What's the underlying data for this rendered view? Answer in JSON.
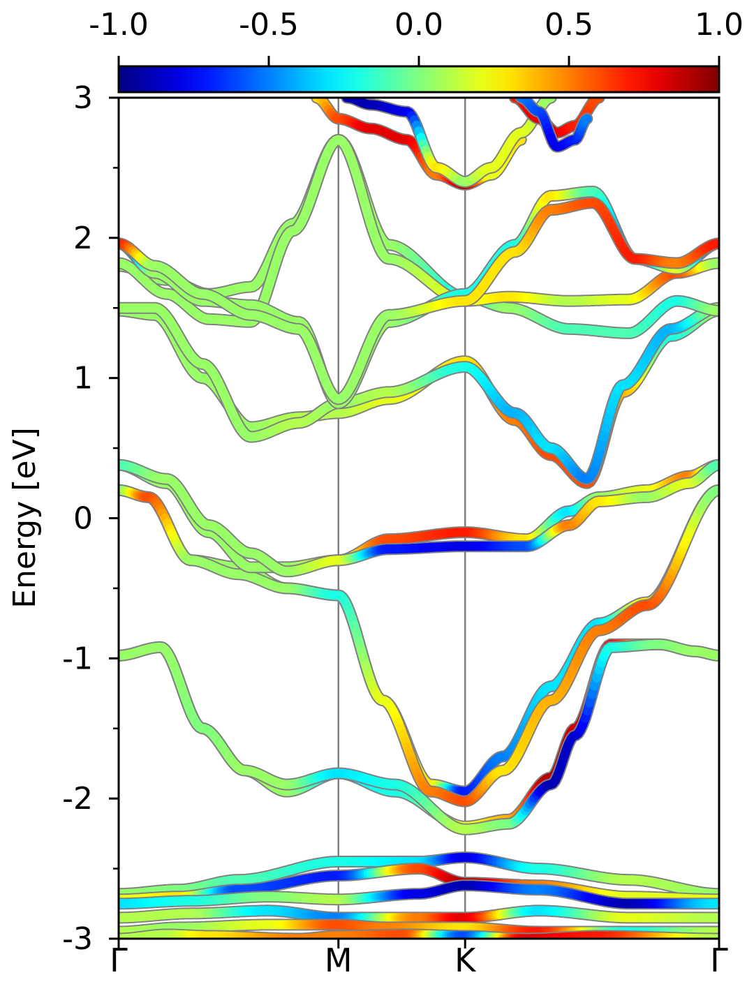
{
  "chart_data": {
    "type": "line",
    "ylabel": "Energy [eV]",
    "xlabel": "",
    "ylim": [
      -3,
      3
    ],
    "xlim": [
      0,
      1
    ],
    "yticks": [
      "-3",
      "-2",
      "-1",
      "0",
      "1",
      "2",
      "3"
    ],
    "yticks_values": [
      -3,
      -2,
      -1,
      0,
      1,
      2,
      3
    ],
    "yminor_step": 0.5,
    "kpath": [
      {
        "label": "Γ",
        "x": 0.0
      },
      {
        "label": "M",
        "x": 0.366
      },
      {
        "label": "K",
        "x": 0.577
      },
      {
        "label": "Γ",
        "x": 1.0
      }
    ],
    "colorbar": {
      "range": [
        -1.0,
        1.0
      ],
      "colormap": "jet",
      "ticks": [
        "-1.0",
        "-0.5",
        "0.0",
        "0.5",
        "1.0"
      ],
      "tick_values": [
        -1.0,
        -0.5,
        0.0,
        0.5,
        1.0
      ]
    },
    "colors": {
      "axis": "#000000",
      "kline": "#808080",
      "band_outline": "#808080"
    },
    "series": [
      {
        "x": [
          0,
          0.07,
          0.14,
          0.21,
          0.28,
          0.366,
          0.46,
          0.577,
          0.65,
          0.72,
          0.76,
          0.82,
          0.9,
          0.96,
          1.0
        ],
        "y": [
          -0.98,
          -0.92,
          -1.5,
          -1.8,
          -1.95,
          -1.82,
          -1.95,
          -2.2,
          -2.15,
          -1.85,
          -1.5,
          -0.9,
          -0.9,
          -0.95,
          -0.98
        ],
        "c": [
          0.05,
          0.05,
          0.0,
          0.05,
          0.05,
          -0.3,
          -0.2,
          0.2,
          0.4,
          0.9,
          0.85,
          0.75,
          0.0,
          0.05,
          0.05
        ]
      },
      {
        "x": [
          0,
          0.07,
          0.14,
          0.21,
          0.28,
          0.366,
          0.46,
          0.577,
          0.65,
          0.72,
          0.76,
          0.82,
          0.9,
          0.96,
          1.0
        ],
        "y": [
          -0.98,
          -0.92,
          -1.5,
          -1.8,
          -1.9,
          -1.82,
          -1.9,
          -2.22,
          -2.18,
          -1.9,
          -1.55,
          -0.92,
          -0.9,
          -0.95,
          -0.98
        ],
        "c": [
          0.05,
          0.05,
          0.0,
          0.05,
          0.05,
          -0.3,
          -0.2,
          0.1,
          0.0,
          -0.9,
          -0.85,
          -0.2,
          0.0,
          0.05,
          0.05
        ]
      },
      {
        "x": [
          0,
          0.05,
          0.12,
          0.2,
          0.28,
          0.366,
          0.44,
          0.52,
          0.577,
          0.64,
          0.72,
          0.8,
          0.88,
          1.0
        ],
        "y": [
          0.2,
          0.15,
          -0.3,
          -0.35,
          -0.5,
          -0.55,
          -1.3,
          -1.9,
          -1.95,
          -1.7,
          -1.2,
          -0.75,
          -0.6,
          0.2
        ],
        "c": [
          0.0,
          -0.2,
          0.05,
          0.05,
          0.05,
          -0.2,
          0.1,
          0.3,
          -0.7,
          -0.5,
          -0.3,
          -0.3,
          0.3,
          0.0
        ]
      },
      {
        "x": [
          0,
          0.05,
          0.12,
          0.2,
          0.28,
          0.366,
          0.44,
          0.52,
          0.577,
          0.64,
          0.72,
          0.8,
          0.88,
          1.0
        ],
        "y": [
          0.2,
          0.15,
          -0.3,
          -0.4,
          -0.5,
          -0.55,
          -1.3,
          -1.95,
          -2.02,
          -1.8,
          -1.3,
          -0.8,
          -0.62,
          0.2
        ],
        "c": [
          0.0,
          0.6,
          0.05,
          0.05,
          0.05,
          -0.2,
          0.2,
          0.5,
          0.6,
          0.3,
          0.4,
          0.5,
          0.6,
          0.0
        ]
      },
      {
        "x": [
          0,
          0.08,
          0.15,
          0.22,
          0.28,
          0.366,
          0.45,
          0.577,
          0.68,
          0.75,
          0.8,
          0.88,
          0.95,
          1.0
        ],
        "y": [
          0.38,
          0.25,
          -0.1,
          -0.35,
          -0.35,
          -0.3,
          -0.15,
          -0.1,
          -0.15,
          0.05,
          0.15,
          0.2,
          0.3,
          0.38
        ],
        "c": [
          -0.1,
          0.05,
          0.05,
          0.05,
          0.05,
          0.2,
          0.6,
          0.7,
          0.3,
          -0.3,
          0.05,
          0.2,
          0.5,
          -0.1
        ]
      },
      {
        "x": [
          0,
          0.08,
          0.15,
          0.22,
          0.28,
          0.366,
          0.45,
          0.577,
          0.68,
          0.75,
          0.8,
          0.88,
          0.95,
          1.0
        ],
        "y": [
          0.38,
          0.28,
          -0.05,
          -0.25,
          -0.38,
          -0.3,
          -0.22,
          -0.2,
          -0.2,
          -0.05,
          0.12,
          0.15,
          0.25,
          0.38
        ],
        "c": [
          -0.1,
          0.05,
          0.05,
          0.05,
          0.05,
          0.2,
          -0.7,
          -0.8,
          -0.6,
          0.5,
          0.3,
          0.05,
          0.2,
          -0.1
        ]
      },
      {
        "x": [
          0,
          0.06,
          0.14,
          0.22,
          0.3,
          0.366,
          0.45,
          0.577,
          0.66,
          0.72,
          0.78,
          0.84,
          0.92,
          1.0
        ],
        "y": [
          1.48,
          1.45,
          1.0,
          0.65,
          0.72,
          0.75,
          0.85,
          1.12,
          0.7,
          0.45,
          0.25,
          0.9,
          1.3,
          1.48
        ],
        "c": [
          0.05,
          0.05,
          0.05,
          0.05,
          0.1,
          0.1,
          0.2,
          0.3,
          0.5,
          0.6,
          0.6,
          0.4,
          -0.2,
          0.05
        ]
      },
      {
        "x": [
          0,
          0.06,
          0.14,
          0.22,
          0.3,
          0.366,
          0.45,
          0.577,
          0.66,
          0.72,
          0.78,
          0.84,
          0.92,
          1.0
        ],
        "y": [
          1.5,
          1.5,
          1.1,
          0.58,
          0.68,
          0.82,
          0.9,
          1.08,
          0.75,
          0.5,
          0.28,
          0.95,
          1.35,
          1.5
        ],
        "c": [
          0.05,
          0.05,
          0.05,
          0.05,
          0.1,
          0.05,
          0.1,
          -0.2,
          -0.4,
          -0.3,
          -0.5,
          -0.3,
          -0.4,
          0.05
        ]
      },
      {
        "x": [
          0,
          0.08,
          0.15,
          0.22,
          0.29,
          0.366,
          0.45,
          0.577,
          0.65,
          0.75,
          0.85,
          0.93,
          1.0
        ],
        "y": [
          1.8,
          1.7,
          1.6,
          1.65,
          2.1,
          2.7,
          1.95,
          1.58,
          1.5,
          1.35,
          1.32,
          1.55,
          1.48
        ],
        "c": [
          0.05,
          0.05,
          0.05,
          0.05,
          0.05,
          0.05,
          0.05,
          -0.2,
          0.05,
          -0.1,
          -0.1,
          -0.2,
          0.05
        ]
      },
      {
        "x": [
          0,
          0.08,
          0.15,
          0.22,
          0.29,
          0.366,
          0.45,
          0.577,
          0.65,
          0.75,
          0.85,
          0.93,
          1.0
        ],
        "y": [
          1.82,
          1.6,
          1.42,
          1.4,
          2.05,
          2.7,
          1.85,
          1.55,
          1.58,
          1.55,
          1.56,
          1.75,
          1.82
        ],
        "c": [
          0.05,
          0.05,
          0.05,
          0.05,
          0.05,
          0.05,
          0.05,
          0.2,
          0.3,
          0.1,
          0.2,
          0.6,
          0.05
        ]
      },
      {
        "x": [
          0,
          0.06,
          0.14,
          0.22,
          0.3,
          0.366,
          0.45,
          0.577,
          0.66,
          0.72,
          0.79,
          0.86,
          0.93,
          1.0
        ],
        "y": [
          1.96,
          1.75,
          1.55,
          1.52,
          1.4,
          0.82,
          1.4,
          1.6,
          1.95,
          2.3,
          2.33,
          1.85,
          1.78,
          1.96
        ],
        "c": [
          -0.8,
          0.05,
          0.05,
          0.05,
          0.05,
          0.05,
          0.05,
          -0.2,
          -0.2,
          0.3,
          -0.1,
          -0.6,
          0.2,
          -0.8
        ]
      },
      {
        "x": [
          0,
          0.06,
          0.14,
          0.22,
          0.3,
          0.366,
          0.45,
          0.577,
          0.66,
          0.72,
          0.79,
          0.86,
          0.93,
          1.0
        ],
        "y": [
          1.96,
          1.8,
          1.6,
          1.45,
          1.35,
          0.85,
          1.45,
          1.55,
          1.9,
          2.2,
          2.25,
          1.85,
          1.82,
          1.96
        ],
        "c": [
          0.7,
          0.05,
          0.05,
          0.05,
          0.05,
          0.05,
          0.05,
          0.3,
          0.3,
          0.5,
          0.6,
          0.7,
          0.5,
          0.7
        ]
      },
      {
        "x": [
          0.33,
          0.366,
          0.42,
          0.48,
          0.53,
          0.577,
          0.62,
          0.67
        ],
        "y": [
          3.0,
          2.85,
          2.78,
          2.7,
          2.45,
          2.38,
          2.45,
          2.7
        ],
        "c": [
          0.3,
          0.6,
          0.8,
          0.8,
          0.5,
          0.9,
          0.2,
          0.3
        ]
      },
      {
        "x": [
          0.38,
          0.42,
          0.48,
          0.53,
          0.577,
          0.62,
          0.67,
          0.72
        ],
        "y": [
          3.0,
          2.95,
          2.9,
          2.5,
          2.4,
          2.5,
          2.75,
          3.0
        ],
        "c": [
          -0.9,
          -0.9,
          -0.8,
          0.3,
          0.05,
          0.2,
          0.2,
          0.05
        ]
      },
      {
        "x": [
          0.66,
          0.7,
          0.73,
          0.76,
          0.8
        ],
        "y": [
          3.0,
          2.85,
          2.75,
          2.8,
          3.0
        ],
        "c": [
          0.7,
          0.8,
          0.8,
          0.7,
          0.6
        ]
      },
      {
        "x": [
          0.67,
          0.7,
          0.73,
          0.76,
          0.78
        ],
        "y": [
          3.0,
          2.9,
          2.65,
          2.7,
          2.85
        ],
        "c": [
          -0.5,
          -0.6,
          -0.8,
          -0.7,
          -0.5
        ]
      },
      {
        "x": [
          0,
          0.1,
          0.2,
          0.366,
          0.5,
          0.577,
          0.7,
          0.85,
          1.0
        ],
        "y": [
          -2.68,
          -2.65,
          -2.58,
          -2.45,
          -2.45,
          -2.42,
          -2.5,
          -2.58,
          -2.68
        ],
        "c": [
          0.05,
          0.0,
          -0.1,
          -0.2,
          -0.3,
          -0.8,
          -0.2,
          0.1,
          0.05
        ]
      },
      {
        "x": [
          0,
          0.1,
          0.2,
          0.366,
          0.5,
          0.577,
          0.7,
          0.85,
          1.0
        ],
        "y": [
          -2.72,
          -2.7,
          -2.65,
          -2.55,
          -2.5,
          -2.6,
          -2.62,
          -2.7,
          -2.72
        ],
        "c": [
          0.2,
          0.3,
          -0.6,
          -0.7,
          0.6,
          0.9,
          0.5,
          0.2,
          0.2
        ]
      },
      {
        "x": [
          0,
          0.12,
          0.25,
          0.366,
          0.5,
          0.577,
          0.7,
          0.85,
          1.0
        ],
        "y": [
          -2.75,
          -2.73,
          -2.7,
          -2.72,
          -2.68,
          -2.62,
          -2.65,
          -2.75,
          -2.75
        ],
        "c": [
          -0.3,
          -0.2,
          0.0,
          0.1,
          -0.8,
          -0.9,
          -0.5,
          -0.9,
          -0.3
        ]
      },
      {
        "x": [
          0,
          0.12,
          0.25,
          0.366,
          0.5,
          0.577,
          0.7,
          0.85,
          1.0
        ],
        "y": [
          -2.85,
          -2.82,
          -2.8,
          -2.85,
          -2.85,
          -2.85,
          -2.8,
          -2.85,
          -2.85
        ],
        "c": [
          0.1,
          0.1,
          -0.3,
          -0.5,
          0.5,
          0.8,
          -0.3,
          0.2,
          0.1
        ]
      },
      {
        "x": [
          0,
          0.1,
          0.25,
          0.366,
          0.45,
          0.577,
          0.7,
          0.85,
          1.0
        ],
        "y": [
          -2.95,
          -2.92,
          -2.9,
          -2.9,
          -2.92,
          -2.92,
          -2.95,
          -2.95,
          -2.95
        ],
        "c": [
          0.1,
          0.05,
          0.2,
          0.6,
          0.5,
          0.3,
          0.7,
          -0.2,
          0.1
        ]
      },
      {
        "x": [
          0,
          0.08,
          0.15,
          0.3,
          0.366,
          0.48,
          0.577,
          0.68,
          0.8,
          1.0
        ],
        "y": [
          -3.0,
          -2.97,
          -2.98,
          -3.0,
          -2.98,
          -2.97,
          -2.98,
          -3.0,
          -2.98,
          -3.0
        ],
        "c": [
          0.1,
          0.1,
          0.3,
          0.5,
          0.5,
          0.6,
          -0.6,
          0.8,
          0.7,
          0.1
        ]
      }
    ]
  }
}
